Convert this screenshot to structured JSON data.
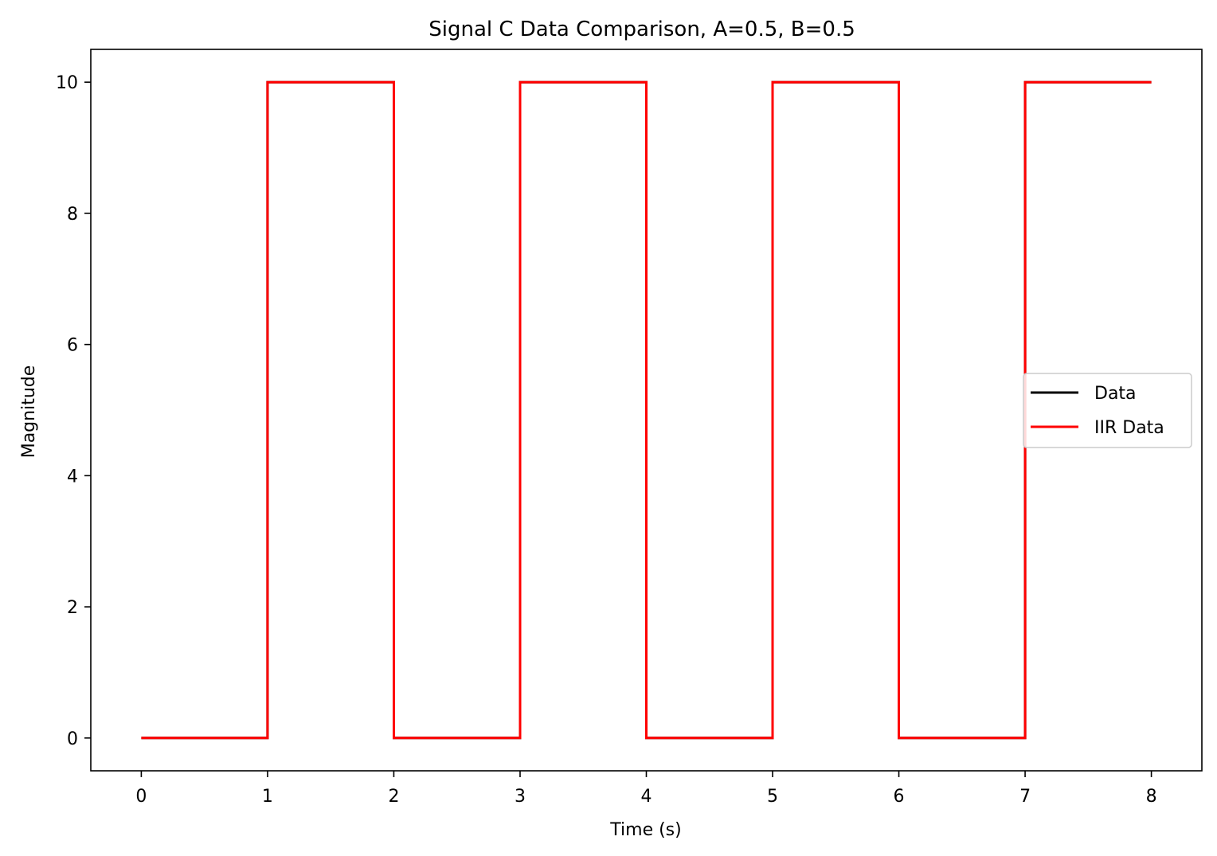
{
  "chart_data": {
    "type": "line",
    "title": "Signal C Data Comparison, A=0.5, B=0.5",
    "xlabel": "Time (s)",
    "ylabel": "Magnitude",
    "xlim": [
      -0.4,
      8.4
    ],
    "ylim": [
      -0.5,
      10.5
    ],
    "xticks": [
      0,
      1,
      2,
      3,
      4,
      5,
      6,
      7,
      8
    ],
    "yticks": [
      0,
      2,
      4,
      6,
      8,
      10
    ],
    "grid": false,
    "legend_position": "center-right",
    "series": [
      {
        "name": "Data",
        "color": "#000000",
        "x": [
          0,
          1,
          1,
          2,
          2,
          3,
          3,
          4,
          4,
          5,
          5,
          6,
          6,
          7,
          7,
          8
        ],
        "y": [
          0,
          0,
          10,
          10,
          0,
          0,
          10,
          10,
          0,
          0,
          10,
          10,
          0,
          0,
          10,
          10
        ]
      },
      {
        "name": "IIR Data",
        "color": "#ff0000",
        "x": [
          0,
          1,
          1,
          2,
          2,
          3,
          3,
          4,
          4,
          5,
          5,
          6,
          6,
          7,
          7,
          8
        ],
        "y": [
          0,
          0,
          10,
          10,
          0,
          0,
          10,
          10,
          0,
          0,
          10,
          10,
          0,
          0,
          10,
          10
        ]
      }
    ]
  }
}
